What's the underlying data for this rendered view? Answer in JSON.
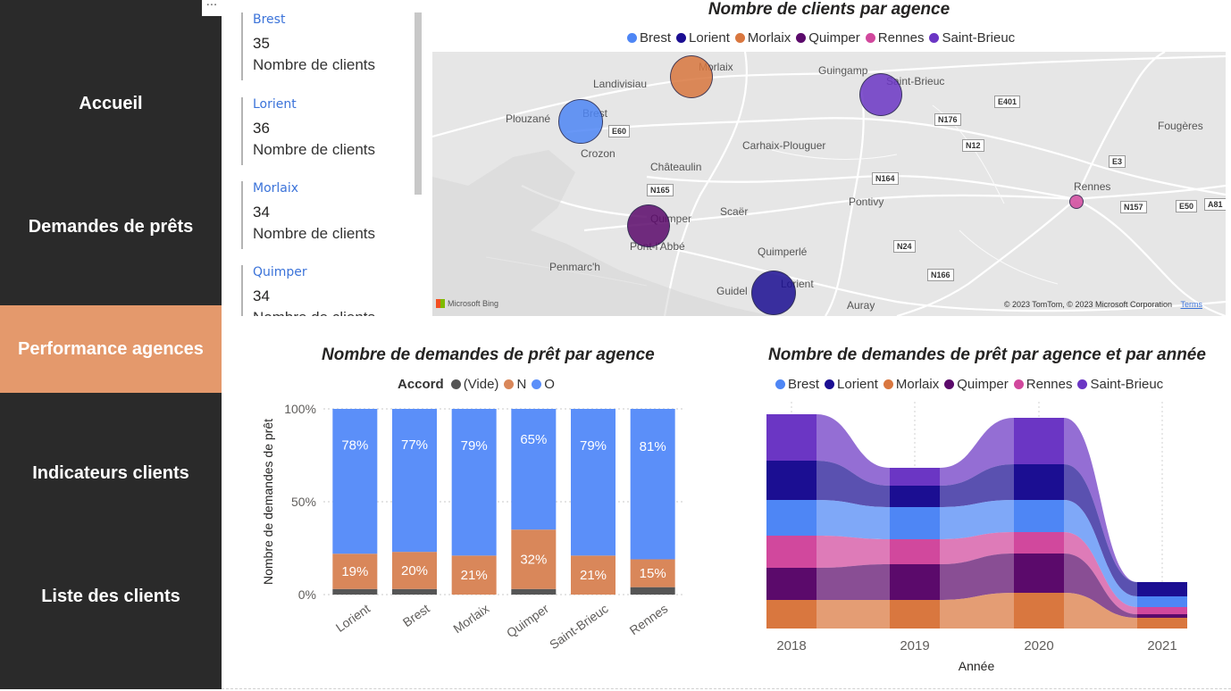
{
  "sidebar": {
    "more_label": "···",
    "items": [
      {
        "label": "Accueil",
        "active": false
      },
      {
        "label": "Demandes de prêts",
        "active": false
      },
      {
        "label": "Performance agences",
        "active": true
      },
      {
        "label": "Indicateurs clients",
        "active": false
      },
      {
        "label": "Liste des clients",
        "active": false
      }
    ]
  },
  "cards": [
    {
      "agency": "Brest",
      "value": "35",
      "caption": "Nombre de clients"
    },
    {
      "agency": "Lorient",
      "value": "36",
      "caption": "Nombre de clients"
    },
    {
      "agency": "Morlaix",
      "value": "34",
      "caption": "Nombre de clients"
    },
    {
      "agency": "Quimper",
      "value": "34",
      "caption": "Nombre de clients"
    }
  ],
  "colors": {
    "Brest": "#4e86f5",
    "Lorient": "#1b0e92",
    "Morlaix": "#d9773f",
    "Quimper": "#5b0a6b",
    "Rennes": "#d1489d",
    "Saint-Brieuc": "#6b36c4",
    "vide": "#555555",
    "N": "#d9875a",
    "O": "#5b8ff9"
  },
  "map": {
    "title": "Nombre de clients par agence",
    "legend": [
      "Brest",
      "Lorient",
      "Morlaix",
      "Quimper",
      "Rennes",
      "Saint-Brieuc"
    ],
    "places": [
      "Morlaix",
      "Guingamp",
      "Landivisiau",
      "Saint-Brieuc",
      "Plouzané",
      "Brest",
      "Fougères",
      "Crozon",
      "Carhaix-Plouguer",
      "Châteaulin",
      "Rennes",
      "Quimper",
      "Scaër",
      "Pontivy",
      "Quimperlé",
      "Penmarc'h",
      "Pont-l'Abbé",
      "Lorient",
      "Guidel",
      "Auray"
    ],
    "roads": [
      "E401",
      "N176",
      "E60",
      "N12",
      "E3",
      "N164",
      "N165",
      "N157",
      "E50",
      "A81",
      "N24",
      "N166"
    ],
    "bubbles": [
      {
        "agency": "Brest",
        "clients": 35
      },
      {
        "agency": "Lorient",
        "clients": 36
      },
      {
        "agency": "Morlaix",
        "clients": 34
      },
      {
        "agency": "Quimper",
        "clients": 34
      },
      {
        "agency": "Rennes",
        "clients": 30
      },
      {
        "agency": "Saint-Brieuc",
        "clients": 34
      }
    ],
    "credit": "© 2023 TomTom, © 2023 Microsoft Corporation",
    "terms": "Terms",
    "bing": "Microsoft Bing"
  },
  "chart_data": [
    {
      "type": "bar",
      "stacked": "100%",
      "title": "Nombre de demandes de prêt par agence",
      "legend_title": "Accord",
      "legend": [
        "(Vide)",
        "N",
        "O"
      ],
      "categories": [
        "Lorient",
        "Brest",
        "Morlaix",
        "Quimper",
        "Saint-Brieuc",
        "Rennes"
      ],
      "series": [
        {
          "name": "(Vide)",
          "values": [
            3,
            3,
            0,
            3,
            0,
            4
          ]
        },
        {
          "name": "N",
          "values": [
            19,
            20,
            21,
            32,
            21,
            15
          ]
        },
        {
          "name": "O",
          "values": [
            78,
            77,
            79,
            65,
            79,
            81
          ]
        }
      ],
      "labels": {
        "N": [
          "19%",
          "20%",
          "21%",
          "32%",
          "21%",
          "15%"
        ],
        "O": [
          "78%",
          "77%",
          "79%",
          "65%",
          "79%",
          "81%"
        ]
      },
      "ylabel": "Nombre de demandes de prêt",
      "yticks": [
        "0%",
        "50%",
        "100%"
      ],
      "ylim": [
        0,
        100
      ]
    },
    {
      "type": "area",
      "subtype": "ribbon",
      "title": "Nombre de demandes de prêt par agence et par année",
      "legend": [
        "Brest",
        "Lorient",
        "Morlaix",
        "Quimper",
        "Rennes",
        "Saint-Brieuc"
      ],
      "categories": [
        "2018",
        "2019",
        "2020",
        "2021"
      ],
      "xlabel": "Année",
      "series": [
        {
          "name": "Saint-Brieuc",
          "values": [
            13,
            5,
            13,
            0
          ]
        },
        {
          "name": "Lorient",
          "values": [
            11,
            6,
            10,
            4
          ]
        },
        {
          "name": "Brest",
          "values": [
            10,
            9,
            9,
            3
          ]
        },
        {
          "name": "Rennes",
          "values": [
            9,
            7,
            6,
            2
          ]
        },
        {
          "name": "Quimper",
          "values": [
            9,
            10,
            11,
            1
          ]
        },
        {
          "name": "Morlaix",
          "values": [
            8,
            8,
            10,
            3
          ]
        }
      ]
    }
  ]
}
